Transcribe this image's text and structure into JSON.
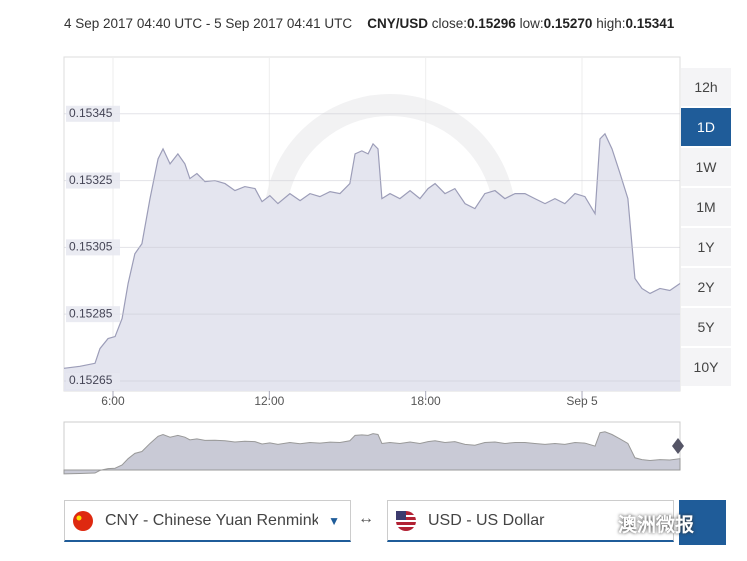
{
  "header": {
    "range": "4 Sep 2017 04:40 UTC - 5 Sep 2017 04:41 UTC",
    "pair": "CNY/USD",
    "close_label": "close:",
    "close": "0.15296",
    "low_label": "low:",
    "low": "0.15270",
    "high_label": "high:",
    "high": "0.15341"
  },
  "chart_data": {
    "type": "area",
    "color": "#9c9db8",
    "fill": "#e4e5ef",
    "grid": true,
    "x": [
      4.12,
      4.73,
      5.31,
      5.5,
      5.81,
      6.08,
      6.35,
      6.58,
      6.84,
      7.11,
      7.42,
      7.73,
      7.92,
      8.19,
      8.49,
      8.76,
      8.95,
      9.22,
      9.53,
      9.91,
      10.3,
      10.68,
      11.06,
      11.45,
      11.72,
      12.02,
      12.33,
      12.79,
      13.18,
      13.56,
      13.94,
      14.33,
      14.71,
      15.09,
      15.29,
      15.55,
      15.79,
      15.98,
      16.17,
      16.32,
      16.63,
      17.01,
      17.4,
      17.78,
      18.09,
      18.36,
      18.74,
      19.12,
      19.51,
      19.89,
      20.27,
      20.66,
      21.04,
      21.43,
      21.81,
      22.19,
      22.58,
      22.96,
      23.34,
      23.73,
      24.11,
      24.5,
      24.69,
      24.88,
      25.15,
      25.46,
      25.76,
      26.03,
      26.3,
      26.61,
      26.99,
      27.37,
      27.76
    ],
    "values": [
      0.152688,
      0.152694,
      0.152703,
      0.152747,
      0.152777,
      0.152783,
      0.152837,
      0.152942,
      0.153031,
      0.153061,
      0.153196,
      0.153315,
      0.153345,
      0.1533,
      0.15333,
      0.1533,
      0.153256,
      0.153271,
      0.153247,
      0.15325,
      0.153241,
      0.15322,
      0.153232,
      0.153226,
      0.153187,
      0.153205,
      0.153181,
      0.153211,
      0.15319,
      0.153211,
      0.153202,
      0.153217,
      0.153211,
      0.153241,
      0.15333,
      0.153339,
      0.15333,
      0.15336,
      0.153345,
      0.153196,
      0.153211,
      0.153196,
      0.15322,
      0.153196,
      0.153226,
      0.153241,
      0.153211,
      0.153226,
      0.153181,
      0.153166,
      0.153211,
      0.15322,
      0.153196,
      0.153211,
      0.153211,
      0.153196,
      0.153181,
      0.153196,
      0.153181,
      0.153211,
      0.153202,
      0.153151,
      0.153375,
      0.15339,
      0.153345,
      0.153271,
      0.153196,
      0.152957,
      0.152927,
      0.152912,
      0.152927,
      0.152921,
      0.152942
    ],
    "xlim": [
      4.12,
      27.76
    ],
    "ylim": [
      0.15262,
      0.15362
    ],
    "xticks": [
      {
        "value": 6,
        "label": "6:00"
      },
      {
        "value": 12,
        "label": "12:00"
      },
      {
        "value": 18,
        "label": "18:00"
      },
      {
        "value": 24,
        "label": "Sep 5"
      }
    ],
    "yticks": [
      0.15265,
      0.15285,
      0.15305,
      0.15325,
      0.15345
    ]
  },
  "ranges": [
    "12h",
    "1D",
    "1W",
    "1M",
    "1Y",
    "2Y",
    "5Y",
    "10Y"
  ],
  "active_range": 1,
  "from_currency": "CNY - Chinese Yuan Renmink",
  "swap": "↔",
  "to_currency": "USD - US Dollar",
  "watermark": "澳洲微报"
}
